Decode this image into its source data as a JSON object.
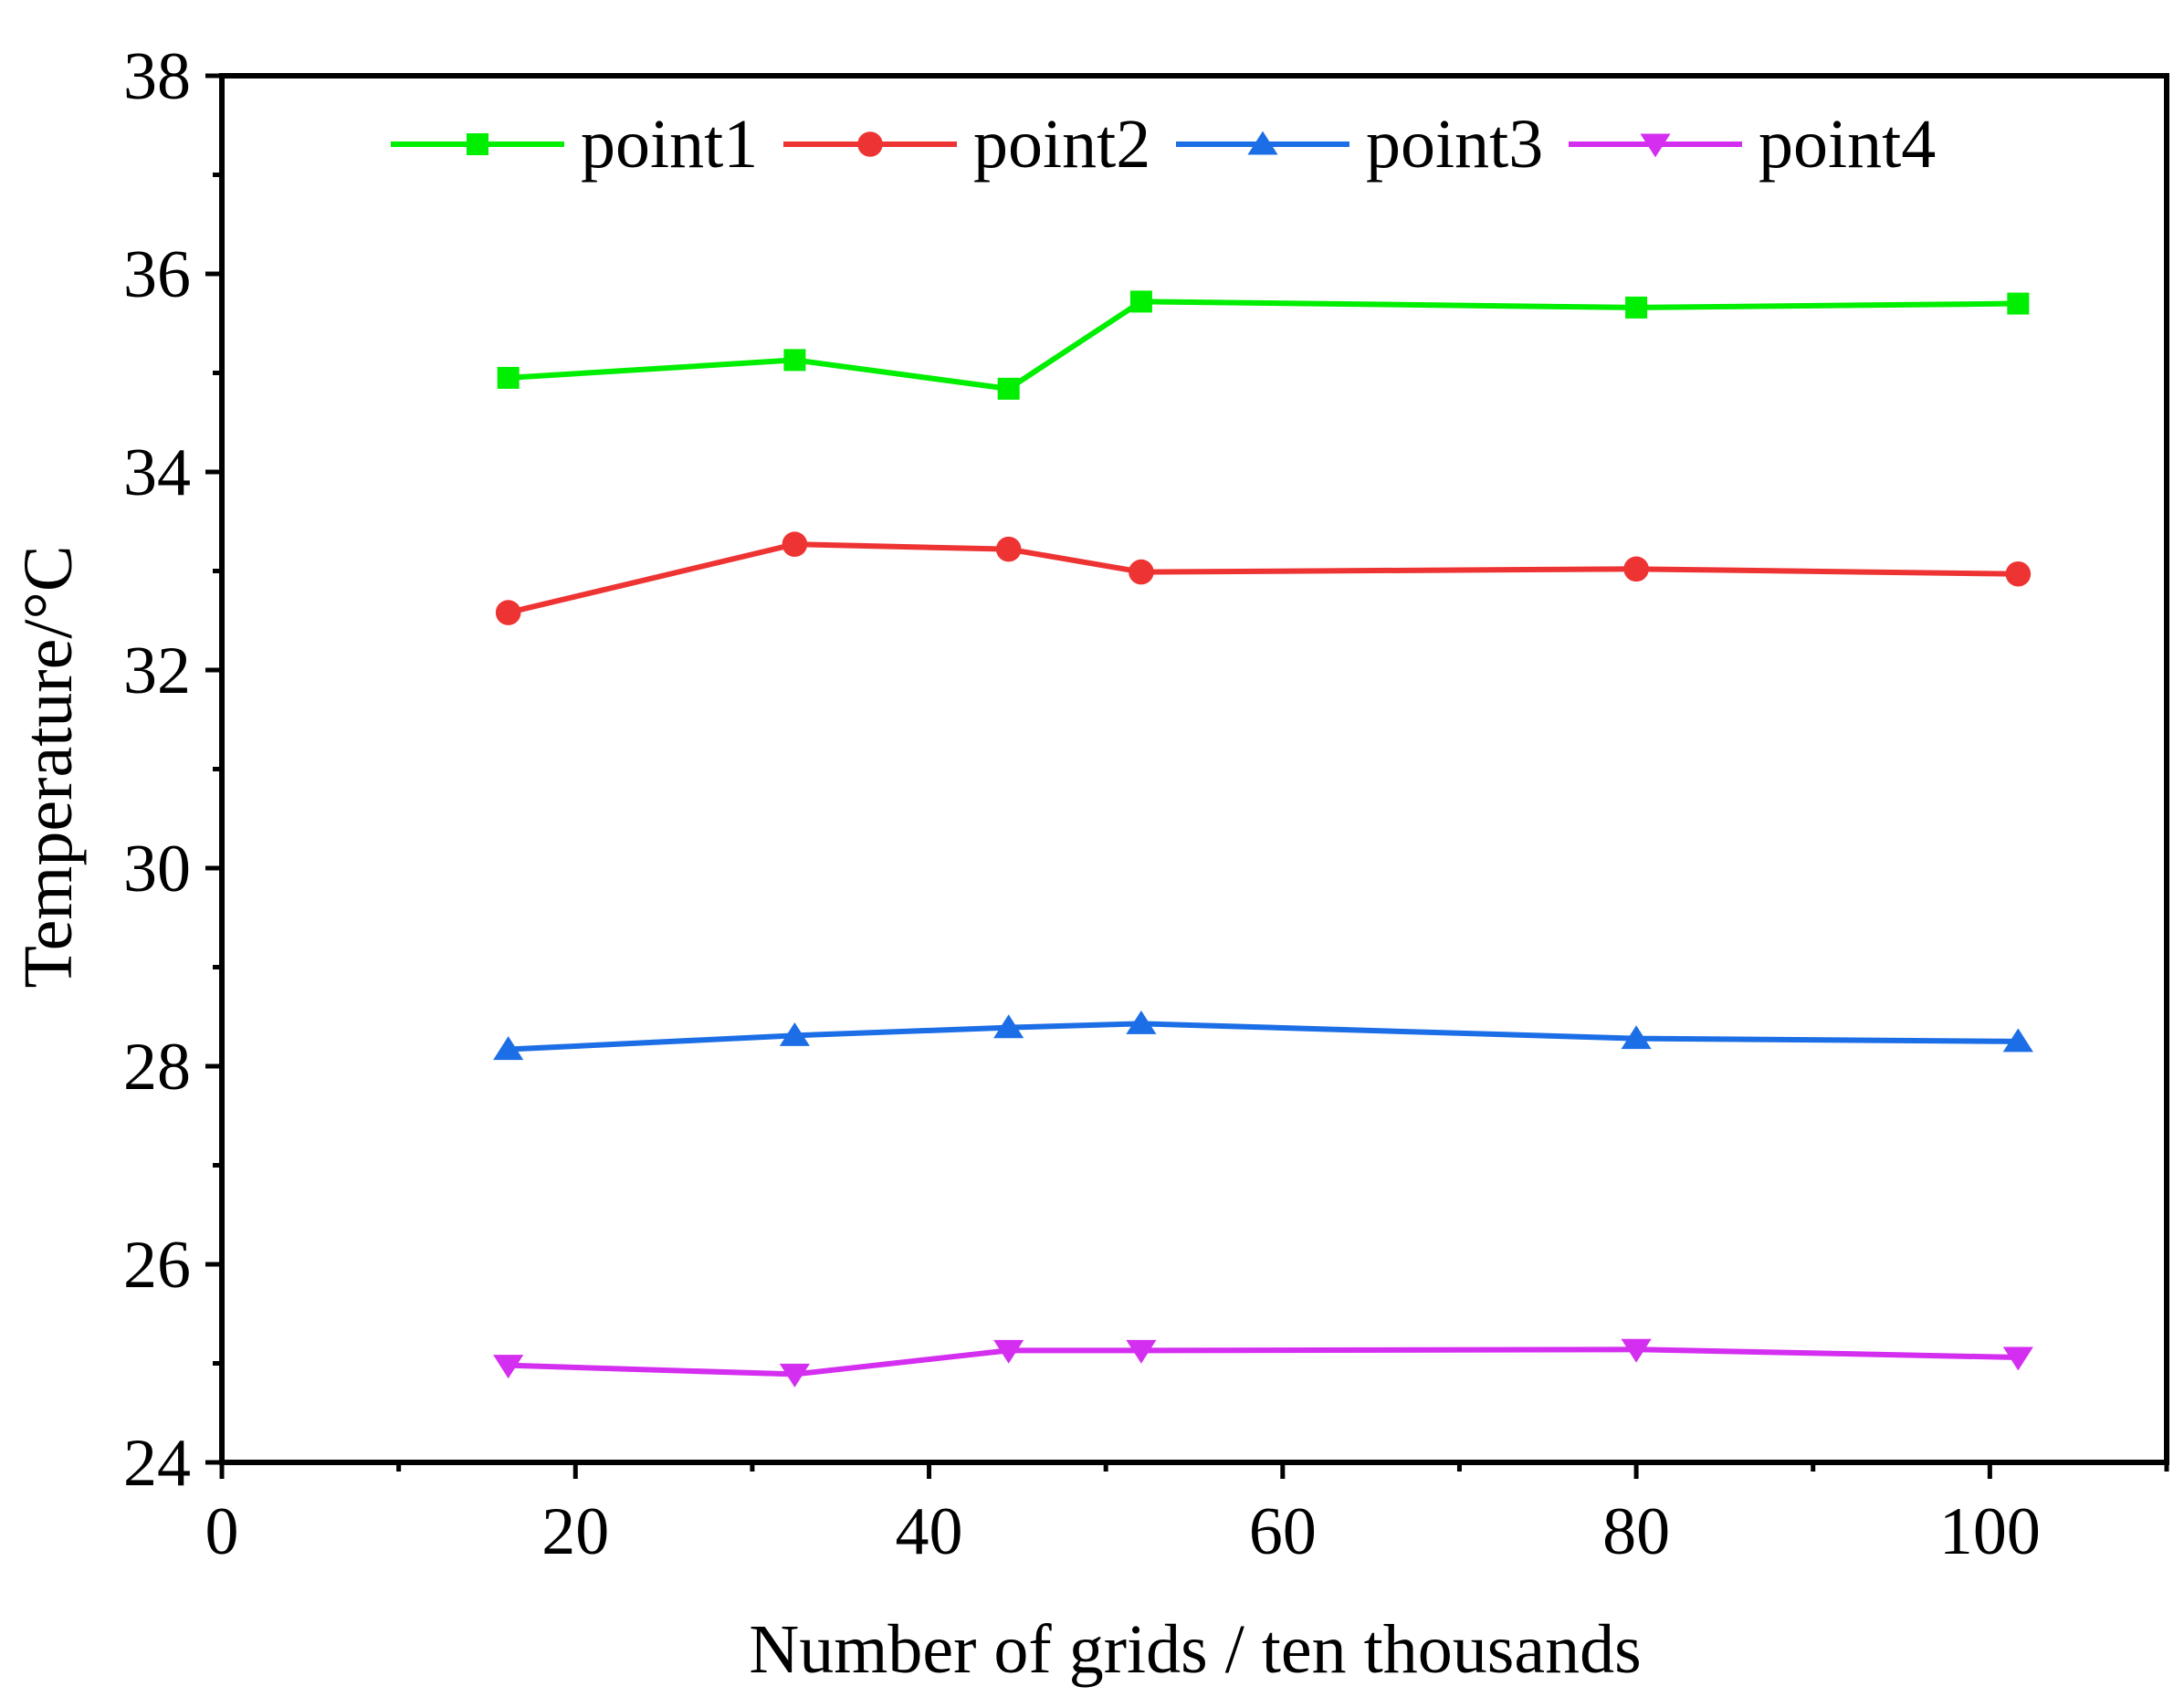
{
  "chart_data": {
    "type": "line",
    "title": "",
    "xlabel": "Number of grids / ten thousands",
    "ylabel": "Temperature/°C",
    "xlim": [
      0,
      110
    ],
    "ylim": [
      24,
      38
    ],
    "xticks": [
      0,
      20,
      40,
      60,
      80,
      100
    ],
    "yticks": [
      24,
      26,
      28,
      30,
      32,
      34,
      36,
      38
    ],
    "grid": false,
    "legend_position": "top",
    "x": [
      16.2,
      32.4,
      44.5,
      52,
      80,
      101.6
    ],
    "series": [
      {
        "name": "point1",
        "color": "#00ee00",
        "marker": "square",
        "values": [
          34.95,
          35.13,
          34.84,
          35.72,
          35.66,
          35.7
        ]
      },
      {
        "name": "point2",
        "color": "#ee3333",
        "marker": "circle",
        "values": [
          32.58,
          33.27,
          33.22,
          32.99,
          33.02,
          32.97
        ]
      },
      {
        "name": "point3",
        "color": "#1c6ee6",
        "marker": "triangle-up",
        "values": [
          28.17,
          28.31,
          28.39,
          28.43,
          28.28,
          28.25
        ]
      },
      {
        "name": "point4",
        "color": "#d42ef0",
        "marker": "triangle-down",
        "values": [
          24.98,
          24.89,
          25.13,
          25.13,
          25.14,
          25.06
        ]
      }
    ]
  }
}
